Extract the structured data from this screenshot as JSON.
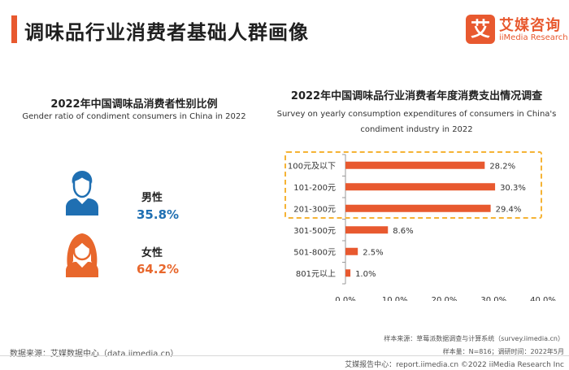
{
  "page": {
    "title": "调味品行业消费者基础人群画像"
  },
  "brand": {
    "logo_mark": "艾",
    "name_cn": "艾媒咨询",
    "name_en": "iiMedia Research",
    "color": "#e8592f"
  },
  "gender": {
    "title": "2022年中国调味品消费者性别比例",
    "subtitle": "Gender ratio of condiment consumers in China in 2022",
    "male": {
      "label": "男性",
      "value": "35.8%",
      "color": "#1f6fb2"
    },
    "female": {
      "label": "女性",
      "value": "64.2%",
      "color": "#e8672c"
    }
  },
  "spending": {
    "title": "2022年中国调味品行业消费者年度消费支出情况调查",
    "subtitle_line1": "Survey on yearly consumption expenditures of consumers in China's",
    "subtitle_line2": "condiment industry in 2022"
  },
  "chart_data": {
    "type": "bar",
    "orientation": "horizontal",
    "categories": [
      "100元及以下",
      "101-200元",
      "201-300元",
      "301-500元",
      "501-800元",
      "801元以上"
    ],
    "values": [
      28.2,
      30.3,
      29.4,
      8.6,
      2.5,
      1.0
    ],
    "value_labels": [
      "28.2%",
      "30.3%",
      "29.4%",
      "8.6%",
      "2.5%",
      "1.0%"
    ],
    "xlim": [
      0,
      40
    ],
    "x_ticks": [
      "0.0%",
      "10.0%",
      "20.0%",
      "30.0%",
      "40.0%"
    ],
    "bar_color": "#e8592f",
    "highlight_color": "#f5b335",
    "highlighted_categories": [
      "100元及以下",
      "101-200元",
      "201-300元"
    ],
    "grid": false
  },
  "footer": {
    "source": "数据来源：艾媒数据中心（data.iimedia.cn）",
    "sample_source": "样本来源：草莓派数据调查与计算系统（survey.iimedia.cn）",
    "sample_size": "样本量：N=816；调研时间：2022年5月",
    "copyright": "艾媒报告中心：report.iimedia.cn ©2022  iiMedia Research  Inc"
  }
}
